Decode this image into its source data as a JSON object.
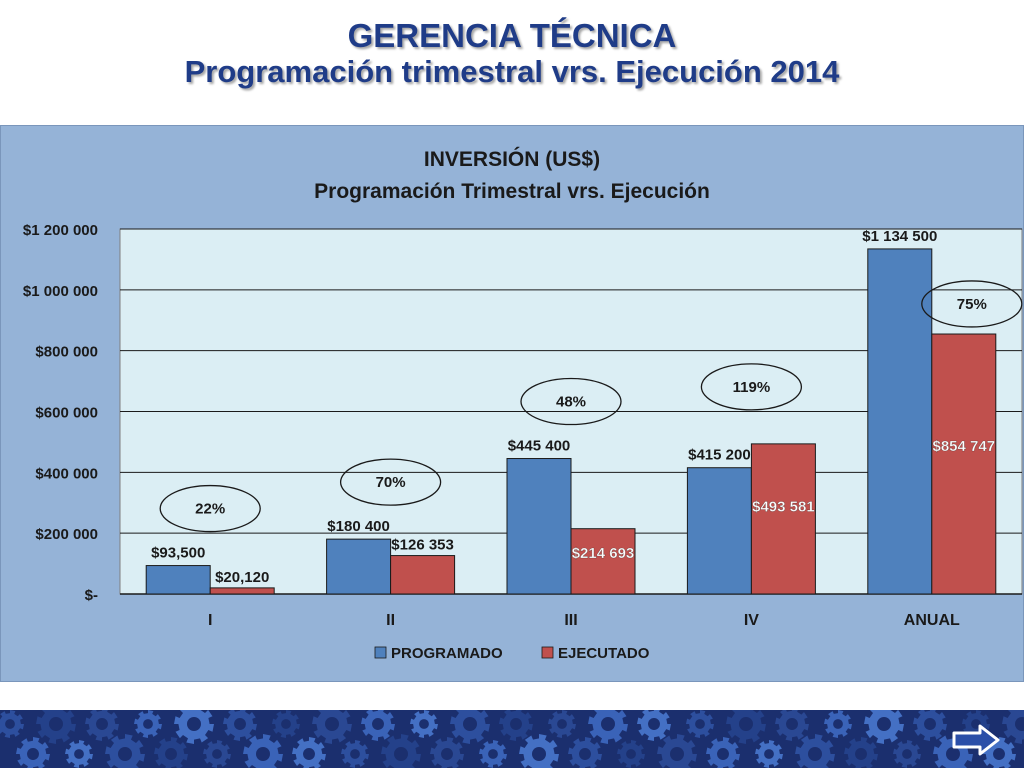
{
  "slide": {
    "title_line1": "GERENCIA TÉCNICA",
    "title_line2": "Programación trimestral vrs. Ejecución 2014"
  },
  "colors": {
    "programado": "#4f81bd",
    "ejecutado": "#c0504d",
    "plot_bg": "#dbeef4",
    "panel_bg": "#95b3d7",
    "title": "#1f3c88",
    "footer": "#1b2f6e"
  },
  "nav": {
    "icon": "right-arrow-icon"
  },
  "chart_data": {
    "type": "bar",
    "title": "INVERSIÓN (US$)",
    "subtitle": "Programación Trimestral vrs. Ejecución",
    "categories": [
      "I",
      "II",
      "III",
      "IV",
      "ANUAL"
    ],
    "series": [
      {
        "name": "PROGRAMADO",
        "values": [
          93500,
          180400,
          445400,
          415200,
          1134500
        ],
        "labels": [
          "$93,500",
          "$180 400",
          "$445 400",
          "$415 200",
          "$1 134 500"
        ]
      },
      {
        "name": "EJECUTADO",
        "values": [
          20120,
          126353,
          214693,
          493581,
          854747
        ],
        "labels": [
          "$20,120",
          "$126 353",
          "$214 693",
          "$493 581",
          "$854 747"
        ]
      }
    ],
    "percentages": [
      "22%",
      "70%",
      "48%",
      "119%",
      "75%"
    ],
    "ylim": [
      0,
      1200000
    ],
    "yticks": [
      0,
      200000,
      400000,
      600000,
      800000,
      1000000,
      1200000
    ],
    "ytick_labels": [
      "$-",
      "$200 000",
      "$400 000",
      "$600 000",
      "$800 000",
      "$1 000 000",
      "$1 200 000"
    ],
    "grid": true,
    "legend": "bottom"
  }
}
